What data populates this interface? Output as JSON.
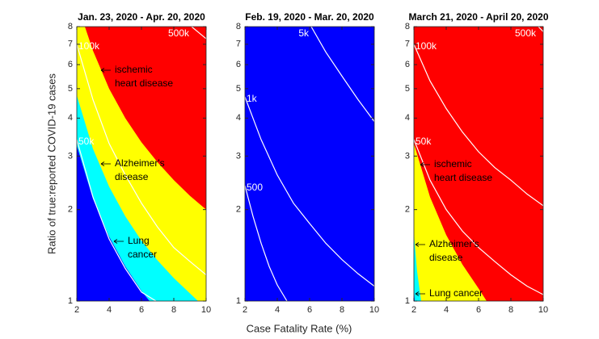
{
  "chart_data": [
    {
      "type": "contour",
      "title": "Jan. 23, 2020 - Apr. 20, 2020",
      "ylabel": "Ratio of true:reported COVID-19 cases",
      "xlim": [
        2,
        10
      ],
      "ylim": [
        1,
        8
      ],
      "xticks": [
        2,
        4,
        6,
        8,
        10
      ],
      "yticks": [
        1,
        2,
        3,
        4,
        5,
        6,
        7,
        8
      ],
      "yscale": "log",
      "background": "#ff0000",
      "fills": [
        {
          "color": "#ffff00",
          "x": [
            2.5,
            3,
            4,
            5,
            6,
            7,
            8,
            9,
            10
          ],
          "y": [
            8,
            6.67,
            5,
            4,
            3.33,
            2.86,
            2.5,
            2.22,
            2
          ]
        },
        {
          "color": "#00ffff",
          "x": [
            2,
            3,
            4,
            5,
            6,
            7,
            8,
            9,
            9.5
          ],
          "y": [
            4.75,
            3.17,
            2.38,
            1.9,
            1.58,
            1.36,
            1.19,
            1.06,
            1
          ]
        },
        {
          "color": "#0000ff",
          "x": [
            2,
            3,
            4,
            5,
            6,
            6.5
          ],
          "y": [
            3.25,
            2.17,
            1.63,
            1.3,
            1.08,
            1
          ]
        }
      ],
      "contours": [
        {
          "label": "500k",
          "x": [
            9.1,
            10
          ],
          "y": [
            8,
            7.3
          ]
        },
        {
          "label": "100k",
          "x": [
            2,
            3,
            4,
            5,
            6,
            7,
            8,
            9,
            10
          ],
          "y": [
            7.0,
            4.6,
            3.3,
            2.6,
            2.1,
            1.75,
            1.5,
            1.35,
            1.22
          ]
        },
        {
          "label": "50k",
          "x": [
            2,
            3,
            4,
            5,
            6,
            6.9
          ],
          "y": [
            3.4,
            2.2,
            1.6,
            1.28,
            1.07,
            1
          ]
        }
      ],
      "annotations": [
        {
          "text": [
            "ischemic",
            "heart disease"
          ]
        },
        {
          "text": [
            "Alzheimer's",
            "disease"
          ]
        },
        {
          "text": [
            "Lung",
            "cancer"
          ]
        }
      ]
    },
    {
      "type": "contour",
      "title": "Feb. 19, 2020 - Mar. 20, 2020",
      "xlabel": "Case Fatality Rate (%)",
      "xlim": [
        2,
        10
      ],
      "ylim": [
        1,
        8
      ],
      "xticks": [
        2,
        4,
        6,
        8,
        10
      ],
      "yticks": [
        1,
        2,
        3,
        4,
        5,
        6,
        7,
        8
      ],
      "yscale": "log",
      "background": "#0000ff",
      "fills": [],
      "contours": [
        {
          "label": "5k",
          "x": [
            6.1,
            7,
            8,
            9,
            10
          ],
          "y": [
            8,
            6.6,
            5.5,
            4.6,
            3.9
          ]
        },
        {
          "label": "1k",
          "x": [
            2,
            3,
            4,
            5,
            6,
            7,
            8,
            9,
            10
          ],
          "y": [
            4.7,
            3.4,
            2.6,
            2.1,
            1.8,
            1.55,
            1.37,
            1.23,
            1.12
          ]
        },
        {
          "label": "500",
          "x": [
            2,
            2.5,
            3,
            3.5,
            4,
            4.6
          ],
          "y": [
            2.4,
            1.9,
            1.55,
            1.3,
            1.13,
            1
          ]
        }
      ],
      "annotations": []
    },
    {
      "type": "contour",
      "title": "March 21, 2020 - April 20, 2020",
      "xlim": [
        2,
        10
      ],
      "ylim": [
        1,
        8
      ],
      "xticks": [
        2,
        4,
        6,
        8,
        10
      ],
      "yticks": [
        1,
        2,
        3,
        4,
        5,
        6,
        7,
        8
      ],
      "yscale": "log",
      "background": "#ff0000",
      "fills": [
        {
          "color": "#ffff00",
          "x": [
            2,
            3,
            4,
            5,
            6,
            6.5
          ],
          "y": [
            3.3,
            2.2,
            1.65,
            1.32,
            1.1,
            1
          ]
        },
        {
          "color": "#00ffff",
          "x": [
            2,
            2.2,
            2.45
          ],
          "y": [
            1.66,
            1.25,
            1
          ]
        },
        {
          "color": "#0000ff",
          "x": [
            2,
            2.05
          ],
          "y": [
            1.1,
            1
          ]
        }
      ],
      "contours": [
        {
          "label": "500k",
          "x": [
            9.7,
            10
          ],
          "y": [
            8,
            7.7
          ]
        },
        {
          "label": "100k",
          "x": [
            2,
            3,
            4,
            5,
            6,
            7,
            8,
            9,
            10
          ],
          "y": [
            7,
            5.3,
            4.3,
            3.6,
            3.1,
            2.75,
            2.5,
            2.25,
            2.06
          ]
        },
        {
          "label": "50k",
          "x": [
            2,
            3,
            4,
            5,
            6,
            7,
            8,
            9,
            10
          ],
          "y": [
            3.4,
            2.5,
            2,
            1.7,
            1.5,
            1.35,
            1.22,
            1.12,
            1.05
          ]
        }
      ],
      "annotations": [
        {
          "text": [
            "ischemic",
            "heart disease"
          ]
        },
        {
          "text": [
            "Alzheimer's",
            "disease"
          ]
        },
        {
          "text": [
            "Lung cancer"
          ]
        }
      ]
    }
  ]
}
